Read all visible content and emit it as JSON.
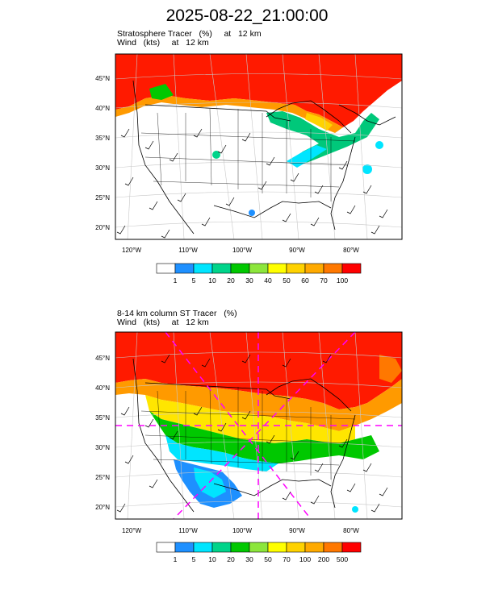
{
  "title": "2025-08-22_21:00:00",
  "panels": [
    {
      "line1": "Stratosphere Tracer   (%)     at   12 km",
      "line2": "Wind   (kts)     at   12 km",
      "lat_labels": [
        "45°N",
        "40°N",
        "35°N",
        "30°N",
        "25°N",
        "20°N"
      ],
      "lon_labels": [
        "120°W",
        "110°W",
        "100°W",
        "90°W",
        "80°W"
      ],
      "colorbar": {
        "colors": [
          "#ffffff",
          "#1e90ff",
          "#00e5ff",
          "#00d48a",
          "#00c800",
          "#8ce63c",
          "#ffff00",
          "#ffd200",
          "#ffaa00",
          "#ff7800",
          "#ff0000"
        ],
        "labels": [
          "1",
          "5",
          "10",
          "20",
          "30",
          "40",
          "50",
          "60",
          "70",
          "100"
        ]
      }
    },
    {
      "line1": "8-14 km column ST Tracer   (%)",
      "line2": "Wind   (kts)     at   12 km",
      "lat_labels": [
        "45°N",
        "40°N",
        "35°N",
        "30°N",
        "25°N",
        "20°N"
      ],
      "lon_labels": [
        "120°W",
        "110°W",
        "100°W",
        "90°W",
        "80°W"
      ],
      "colorbar": {
        "colors": [
          "#ffffff",
          "#1e90ff",
          "#00e5ff",
          "#00d48a",
          "#00c800",
          "#8ce63c",
          "#ffff00",
          "#ffd200",
          "#ffaa00",
          "#ff7800",
          "#ff0000"
        ],
        "labels": [
          "1",
          "5",
          "10",
          "20",
          "30",
          "50",
          "70",
          "100",
          "200",
          "500"
        ]
      }
    }
  ]
}
